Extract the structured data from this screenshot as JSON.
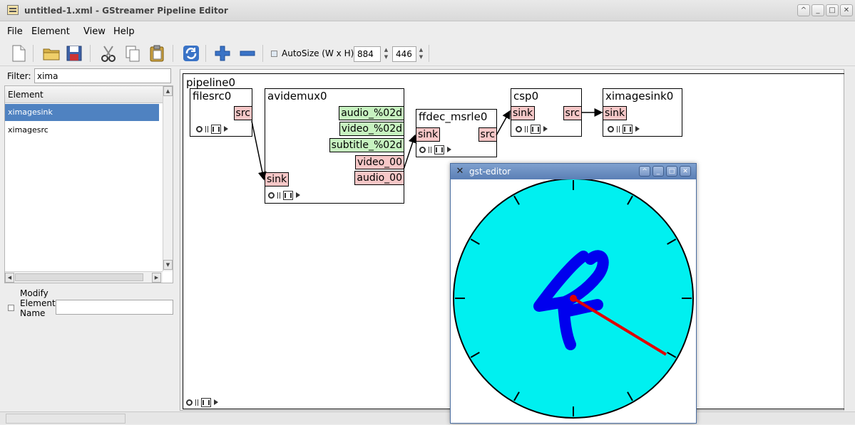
{
  "window": {
    "title": "untitled-1.xml - GStreamer Pipeline Editor",
    "controls": [
      "^",
      "_",
      "□",
      "✕"
    ]
  },
  "menu": [
    "File",
    "Element",
    "View",
    "Help"
  ],
  "toolbar": {
    "icons": [
      "new-icon",
      "open-icon",
      "save-icon",
      "cut-icon",
      "copy-icon",
      "paste-icon",
      "refresh-icon",
      "add-icon",
      "remove-icon"
    ],
    "autosize_label": "AutoSize (W x H)",
    "width_value": "884",
    "height_value": "446"
  },
  "filter": {
    "label": "Filter:",
    "value": "xima"
  },
  "element_list": {
    "header": "Element",
    "items": [
      {
        "label": "ximagesink",
        "selected": true
      },
      {
        "label": "ximagesrc",
        "selected": false
      }
    ]
  },
  "modify": {
    "line1": "Modify",
    "line2": "Element",
    "line3": "Name",
    "value": ""
  },
  "pipeline": {
    "label": "pipeline0",
    "elements": {
      "filesrc0": {
        "title": "filesrc0",
        "pads": [
          "src"
        ]
      },
      "avidemux0": {
        "title": "avidemux0",
        "pads": [
          "audio_%02d",
          "video_%02d",
          "subtitle_%02d",
          "video_00",
          "audio_00",
          "sink"
        ]
      },
      "ffdec": {
        "title": "ffdec_msrle0",
        "pads": [
          "sink",
          "src"
        ]
      },
      "csp0": {
        "title": "csp0",
        "pads": [
          "sink",
          "src"
        ]
      },
      "ximagesink0": {
        "title": "ximagesink0",
        "pads": [
          "sink"
        ]
      }
    },
    "colors": {
      "pad_always": "#f6c7c7",
      "pad_template": "#c7f2c0"
    }
  },
  "gst_window": {
    "title": "gst-editor",
    "controls": [
      "^",
      "_",
      "□",
      "✕"
    ],
    "clock": {
      "face_color": "#00f0f0",
      "digit": "4",
      "digit_color": "#0000ee",
      "hand_color": "#e00000"
    }
  }
}
